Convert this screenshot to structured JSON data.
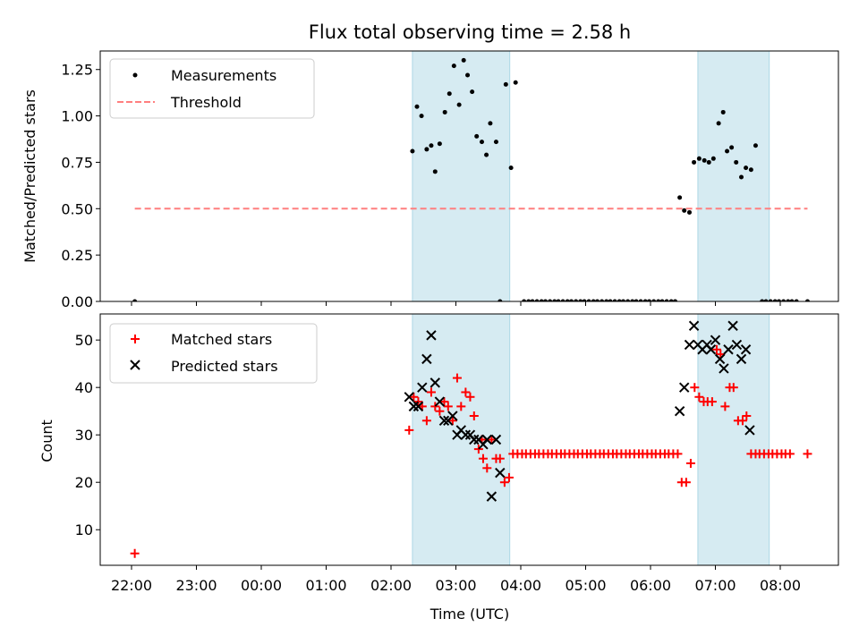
{
  "chart_data": [
    {
      "type": "scatter",
      "title": "Flux total observing time = 2.58 h",
      "ylabel": "Matched/Predicted stars",
      "xlabel": "",
      "ylim": [
        0,
        1.35
      ],
      "yticks": [
        0.0,
        0.25,
        0.5,
        0.75,
        1.0,
        1.25
      ],
      "ytick_labels": [
        "0.00",
        "0.25",
        "0.50",
        "0.75",
        "1.00",
        "1.25"
      ],
      "x_axis": "time (hours since 22:00 UTC)",
      "legend_position": "upper-left",
      "shaded_intervals": [
        [
          4.33,
          5.83
        ],
        [
          8.73,
          9.83
        ]
      ],
      "shade_color": "#add8e6",
      "series": [
        {
          "name": "Measurements",
          "kind": "scatter",
          "color": "#000000",
          "points": [
            [
              0.05,
              0
            ],
            [
              4.33,
              0.81
            ],
            [
              4.4,
              1.05
            ],
            [
              4.47,
              1.0
            ],
            [
              4.55,
              0.82
            ],
            [
              4.62,
              0.84
            ],
            [
              4.68,
              0.7
            ],
            [
              4.75,
              0.85
            ],
            [
              4.83,
              1.02
            ],
            [
              4.9,
              1.12
            ],
            [
              4.97,
              1.27
            ],
            [
              5.05,
              1.06
            ],
            [
              5.12,
              1.3
            ],
            [
              5.18,
              1.22
            ],
            [
              5.25,
              1.13
            ],
            [
              5.32,
              0.89
            ],
            [
              5.4,
              0.86
            ],
            [
              5.47,
              0.79
            ],
            [
              5.53,
              0.96
            ],
            [
              5.62,
              0.86
            ],
            [
              5.68,
              0
            ],
            [
              5.77,
              1.17
            ],
            [
              5.85,
              0.72
            ],
            [
              5.92,
              1.18
            ],
            [
              6.05,
              0
            ],
            [
              6.12,
              0
            ],
            [
              6.18,
              0
            ],
            [
              6.25,
              0
            ],
            [
              6.32,
              0
            ],
            [
              6.38,
              0
            ],
            [
              6.45,
              0
            ],
            [
              6.52,
              0
            ],
            [
              6.58,
              0
            ],
            [
              6.65,
              0
            ],
            [
              6.72,
              0
            ],
            [
              6.78,
              0
            ],
            [
              6.85,
              0
            ],
            [
              6.92,
              0
            ],
            [
              6.98,
              0
            ],
            [
              7.05,
              0
            ],
            [
              7.12,
              0
            ],
            [
              7.18,
              0
            ],
            [
              7.25,
              0
            ],
            [
              7.32,
              0
            ],
            [
              7.38,
              0
            ],
            [
              7.45,
              0
            ],
            [
              7.52,
              0
            ],
            [
              7.58,
              0
            ],
            [
              7.65,
              0
            ],
            [
              7.72,
              0
            ],
            [
              7.78,
              0
            ],
            [
              7.85,
              0
            ],
            [
              7.92,
              0
            ],
            [
              7.98,
              0
            ],
            [
              8.05,
              0
            ],
            [
              8.12,
              0
            ],
            [
              8.18,
              0
            ],
            [
              8.25,
              0
            ],
            [
              8.32,
              0
            ],
            [
              8.38,
              0
            ],
            [
              8.45,
              0.56
            ],
            [
              8.52,
              0.49
            ],
            [
              8.6,
              0.48
            ],
            [
              8.67,
              0.75
            ],
            [
              8.75,
              0.77
            ],
            [
              8.83,
              0.76
            ],
            [
              8.9,
              0.75
            ],
            [
              8.97,
              0.77
            ],
            [
              9.05,
              0.96
            ],
            [
              9.12,
              1.02
            ],
            [
              9.18,
              0.81
            ],
            [
              9.25,
              0.83
            ],
            [
              9.32,
              0.75
            ],
            [
              9.4,
              0.67
            ],
            [
              9.47,
              0.72
            ],
            [
              9.55,
              0.71
            ],
            [
              9.62,
              0.84
            ],
            [
              9.72,
              0
            ],
            [
              9.78,
              0
            ],
            [
              9.85,
              0
            ],
            [
              9.92,
              0
            ],
            [
              9.98,
              0
            ],
            [
              10.05,
              0
            ],
            [
              10.12,
              0
            ],
            [
              10.18,
              0
            ],
            [
              10.25,
              0
            ],
            [
              10.42,
              0
            ]
          ]
        },
        {
          "name": "Threshold",
          "kind": "line",
          "style": "dashed",
          "color": "#ff7f7f",
          "x": [
            0.05,
            10.42
          ],
          "y": [
            0.5,
            0.5
          ]
        }
      ]
    },
    {
      "type": "scatter",
      "title": "",
      "ylabel": "Count",
      "xlabel": "Time (UTC)",
      "ylim": [
        2.5,
        55.5
      ],
      "yticks": [
        10,
        20,
        30,
        40,
        50
      ],
      "ytick_labels": [
        "10",
        "20",
        "30",
        "40",
        "50"
      ],
      "xticks": [
        0,
        1,
        2,
        3,
        4,
        5,
        6,
        7,
        8,
        9,
        10
      ],
      "xtick_labels": [
        "22:00",
        "23:00",
        "00:00",
        "01:00",
        "02:00",
        "03:00",
        "04:00",
        "05:00",
        "06:00",
        "07:00",
        "08:00"
      ],
      "legend_position": "upper-left",
      "shaded_intervals": [
        [
          4.33,
          5.83
        ],
        [
          8.73,
          9.83
        ]
      ],
      "shade_color": "#add8e6",
      "series": [
        {
          "name": "Matched stars",
          "marker": "plus",
          "color": "#ff0000",
          "points": [
            [
              0.05,
              5
            ],
            [
              4.28,
              31
            ],
            [
              4.35,
              38
            ],
            [
              4.42,
              37
            ],
            [
              4.48,
              36
            ],
            [
              4.55,
              33
            ],
            [
              4.62,
              39
            ],
            [
              4.68,
              36
            ],
            [
              4.75,
              35
            ],
            [
              4.82,
              37
            ],
            [
              4.88,
              36
            ],
            [
              4.95,
              33
            ],
            [
              5.02,
              42
            ],
            [
              5.08,
              36
            ],
            [
              5.15,
              39
            ],
            [
              5.22,
              38
            ],
            [
              5.28,
              34
            ],
            [
              5.35,
              27
            ],
            [
              5.4,
              29
            ],
            [
              5.42,
              25
            ],
            [
              5.48,
              23
            ],
            [
              5.55,
              29
            ],
            [
              5.62,
              25
            ],
            [
              5.68,
              25
            ],
            [
              5.75,
              20
            ],
            [
              5.82,
              21
            ],
            [
              5.88,
              26
            ],
            [
              5.95,
              26
            ],
            [
              6.02,
              26
            ],
            [
              6.08,
              26
            ],
            [
              6.15,
              26
            ],
            [
              6.22,
              26
            ],
            [
              6.28,
              26
            ],
            [
              6.35,
              26
            ],
            [
              6.42,
              26
            ],
            [
              6.48,
              26
            ],
            [
              6.55,
              26
            ],
            [
              6.62,
              26
            ],
            [
              6.68,
              26
            ],
            [
              6.75,
              26
            ],
            [
              6.82,
              26
            ],
            [
              6.88,
              26
            ],
            [
              6.95,
              26
            ],
            [
              7.02,
              26
            ],
            [
              7.08,
              26
            ],
            [
              7.15,
              26
            ],
            [
              7.22,
              26
            ],
            [
              7.28,
              26
            ],
            [
              7.35,
              26
            ],
            [
              7.42,
              26
            ],
            [
              7.48,
              26
            ],
            [
              7.55,
              26
            ],
            [
              7.62,
              26
            ],
            [
              7.68,
              26
            ],
            [
              7.75,
              26
            ],
            [
              7.82,
              26
            ],
            [
              7.88,
              26
            ],
            [
              7.95,
              26
            ],
            [
              8.02,
              26
            ],
            [
              8.08,
              26
            ],
            [
              8.15,
              26
            ],
            [
              8.22,
              26
            ],
            [
              8.28,
              26
            ],
            [
              8.35,
              26
            ],
            [
              8.42,
              26
            ],
            [
              8.48,
              20
            ],
            [
              8.55,
              20
            ],
            [
              8.62,
              24
            ],
            [
              8.68,
              40
            ],
            [
              8.75,
              38
            ],
            [
              8.82,
              37
            ],
            [
              8.88,
              37
            ],
            [
              8.95,
              37
            ],
            [
              9.02,
              48
            ],
            [
              9.08,
              47
            ],
            [
              9.15,
              36
            ],
            [
              9.22,
              40
            ],
            [
              9.28,
              40
            ],
            [
              9.35,
              33
            ],
            [
              9.42,
              33
            ],
            [
              9.48,
              34
            ],
            [
              9.55,
              26
            ],
            [
              9.62,
              26
            ],
            [
              9.68,
              26
            ],
            [
              9.75,
              26
            ],
            [
              9.82,
              26
            ],
            [
              9.88,
              26
            ],
            [
              9.95,
              26
            ],
            [
              10.02,
              26
            ],
            [
              10.08,
              26
            ],
            [
              10.15,
              26
            ],
            [
              10.42,
              26
            ]
          ]
        },
        {
          "name": "Predicted stars",
          "marker": "x",
          "color": "#000000",
          "points": [
            [
              4.28,
              38
            ],
            [
              4.35,
              36
            ],
            [
              4.42,
              36
            ],
            [
              4.48,
              40
            ],
            [
              4.55,
              46
            ],
            [
              4.62,
              51
            ],
            [
              4.68,
              41
            ],
            [
              4.75,
              37
            ],
            [
              4.82,
              33
            ],
            [
              4.88,
              33
            ],
            [
              4.95,
              34
            ],
            [
              5.02,
              30
            ],
            [
              5.08,
              31
            ],
            [
              5.15,
              30
            ],
            [
              5.22,
              30
            ],
            [
              5.28,
              29
            ],
            [
              5.35,
              29
            ],
            [
              5.42,
              28
            ],
            [
              5.48,
              29
            ],
            [
              5.55,
              17
            ],
            [
              5.62,
              29
            ],
            [
              5.68,
              22
            ],
            [
              8.45,
              35
            ],
            [
              8.52,
              40
            ],
            [
              8.6,
              49
            ],
            [
              8.67,
              53
            ],
            [
              8.73,
              49
            ],
            [
              8.8,
              48
            ],
            [
              8.87,
              49
            ],
            [
              8.93,
              48
            ],
            [
              9.0,
              50
            ],
            [
              9.07,
              46
            ],
            [
              9.13,
              44
            ],
            [
              9.2,
              48
            ],
            [
              9.27,
              53
            ],
            [
              9.33,
              49
            ],
            [
              9.4,
              46
            ],
            [
              9.47,
              48
            ],
            [
              9.53,
              31
            ]
          ]
        }
      ]
    }
  ]
}
